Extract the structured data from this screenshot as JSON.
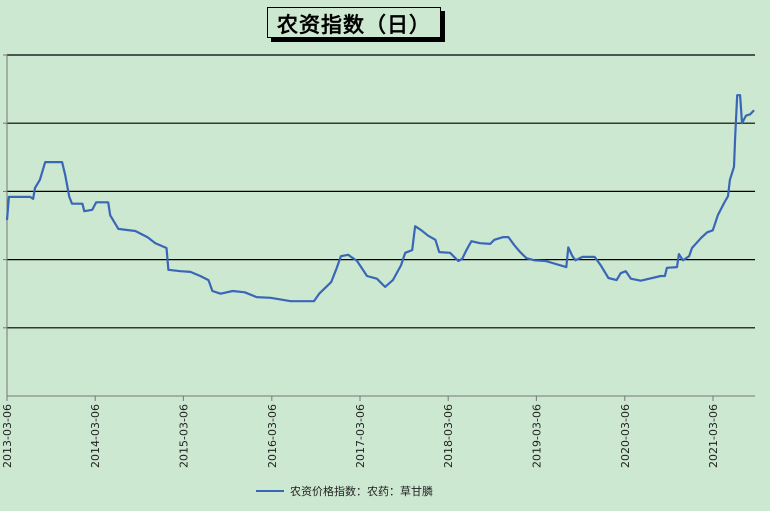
{
  "chart_data": {
    "type": "line",
    "title": "农资指数（日）",
    "xlabel": "",
    "ylabel": "",
    "ylim": [
      0,
      5
    ],
    "y_tick_labels_shown": false,
    "grid": "horizontal",
    "legend_position": "bottom",
    "x_ticks": [
      "2013-03-06",
      "2014-03-06",
      "2015-03-06",
      "2016-03-06",
      "2017-03-06",
      "2018-03-06",
      "2019-03-06",
      "2020-03-06",
      "2021-03-06"
    ],
    "series": [
      {
        "name": "农资价格指数：农药：草甘膦",
        "color": "#3a66b8",
        "points": [
          [
            "2013-03-06",
            2.58
          ],
          [
            "2013-03-14",
            2.92
          ],
          [
            "2013-06-10",
            2.92
          ],
          [
            "2013-06-22",
            2.89
          ],
          [
            "2013-06-30",
            3.05
          ],
          [
            "2013-07-20",
            3.17
          ],
          [
            "2013-08-11",
            3.43
          ],
          [
            "2013-10-20",
            3.43
          ],
          [
            "2013-11-02",
            3.24
          ],
          [
            "2013-11-19",
            2.92
          ],
          [
            "2013-11-30",
            2.82
          ],
          [
            "2014-01-12",
            2.82
          ],
          [
            "2014-01-20",
            2.71
          ],
          [
            "2014-02-22",
            2.73
          ],
          [
            "2014-03-10",
            2.84
          ],
          [
            "2014-04-29",
            2.84
          ],
          [
            "2014-05-07",
            2.65
          ],
          [
            "2014-06-10",
            2.45
          ],
          [
            "2014-08-19",
            2.42
          ],
          [
            "2014-10-08",
            2.33
          ],
          [
            "2014-11-10",
            2.24
          ],
          [
            "2014-12-26",
            2.17
          ],
          [
            "2015-01-03",
            1.85
          ],
          [
            "2015-02-22",
            1.83
          ],
          [
            "2015-04-04",
            1.82
          ],
          [
            "2015-05-15",
            1.76
          ],
          [
            "2015-06-18",
            1.7
          ],
          [
            "2015-07-04",
            1.54
          ],
          [
            "2015-08-07",
            1.5
          ],
          [
            "2015-09-26",
            1.54
          ],
          [
            "2015-11-15",
            1.52
          ],
          [
            "2016-01-03",
            1.45
          ],
          [
            "2016-03-01",
            1.44
          ],
          [
            "2016-05-23",
            1.39
          ],
          [
            "2016-08-27",
            1.39
          ],
          [
            "2016-09-18",
            1.5
          ],
          [
            "2016-11-07",
            1.67
          ],
          [
            "2016-11-30",
            1.88
          ],
          [
            "2016-12-17",
            2.05
          ],
          [
            "2017-01-16",
            2.07
          ],
          [
            "2017-02-22",
            1.98
          ],
          [
            "2017-04-04",
            1.76
          ],
          [
            "2017-05-15",
            1.72
          ],
          [
            "2017-06-18",
            1.6
          ],
          [
            "2017-07-20",
            1.7
          ],
          [
            "2017-08-23",
            1.92
          ],
          [
            "2017-09-09",
            2.1
          ],
          [
            "2017-10-08",
            2.14
          ],
          [
            "2017-10-20",
            2.49
          ],
          [
            "2017-11-15",
            2.43
          ],
          [
            "2017-12-13",
            2.35
          ],
          [
            "2018-01-12",
            2.29
          ],
          [
            "2018-01-28",
            2.11
          ],
          [
            "2018-03-14",
            2.1
          ],
          [
            "2018-04-17",
            1.98
          ],
          [
            "2018-05-03",
            2.01
          ],
          [
            "2018-05-19",
            2.13
          ],
          [
            "2018-06-10",
            2.27
          ],
          [
            "2018-07-16",
            2.24
          ],
          [
            "2018-08-27",
            2.23
          ],
          [
            "2018-09-13",
            2.29
          ],
          [
            "2018-10-20",
            2.33
          ],
          [
            "2018-11-10",
            2.33
          ],
          [
            "2018-12-05",
            2.21
          ],
          [
            "2018-12-29",
            2.11
          ],
          [
            "2019-01-24",
            2.02
          ],
          [
            "2019-02-26",
            1.99
          ],
          [
            "2019-04-13",
            1.98
          ],
          [
            "2019-07-08",
            1.89
          ],
          [
            "2019-07-16",
            2.18
          ],
          [
            "2019-08-02",
            2.05
          ],
          [
            "2019-08-15",
            1.99
          ],
          [
            "2019-09-13",
            2.04
          ],
          [
            "2019-11-02",
            2.04
          ],
          [
            "2019-11-27",
            1.92
          ],
          [
            "2019-12-29",
            1.73
          ],
          [
            "2020-02-01",
            1.7
          ],
          [
            "2020-02-18",
            1.8
          ],
          [
            "2020-03-10",
            1.83
          ],
          [
            "2020-03-31",
            1.72
          ],
          [
            "2020-05-11",
            1.69
          ],
          [
            "2020-08-02",
            1.76
          ],
          [
            "2020-08-19",
            1.76
          ],
          [
            "2020-08-27",
            1.88
          ],
          [
            "2020-10-08",
            1.89
          ],
          [
            "2020-10-16",
            2.08
          ],
          [
            "2020-11-02",
            1.99
          ],
          [
            "2020-11-27",
            2.05
          ],
          [
            "2020-12-09",
            2.17
          ],
          [
            "2021-01-16",
            2.32
          ],
          [
            "2021-02-10",
            2.4
          ],
          [
            "2021-03-05",
            2.43
          ],
          [
            "2021-03-26",
            2.65
          ],
          [
            "2021-04-21",
            2.83
          ],
          [
            "2021-05-07",
            2.93
          ],
          [
            "2021-05-15",
            3.17
          ],
          [
            "2021-06-01",
            3.36
          ],
          [
            "2021-06-06",
            3.81
          ],
          [
            "2021-06-14",
            4.41
          ],
          [
            "2021-06-26",
            4.41
          ],
          [
            "2021-07-04",
            4.0
          ],
          [
            "2021-07-20",
            4.11
          ],
          [
            "2021-08-07",
            4.13
          ],
          [
            "2021-08-23",
            4.19
          ]
        ]
      }
    ]
  }
}
